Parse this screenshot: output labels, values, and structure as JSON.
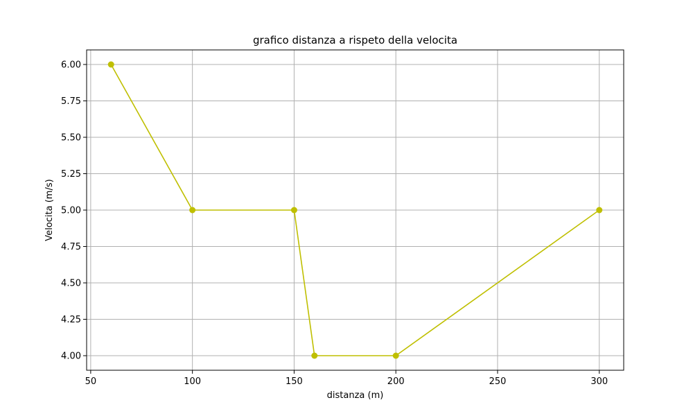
{
  "chart_data": {
    "type": "line",
    "title": "grafico distanza a rispeto della velocita",
    "xlabel": "distanza (m)",
    "ylabel": "Velocita (m/s)",
    "x": [
      60,
      100,
      150,
      160,
      200,
      300
    ],
    "series": [
      {
        "values": [
          6.0,
          5.0,
          5.0,
          4.0,
          4.0,
          5.0
        ],
        "color": "#bfbf00",
        "marker": "circle"
      }
    ],
    "xlim": [
      47.999,
      312.0
    ],
    "ylim": [
      3.9,
      6.1
    ],
    "xticks": [
      50,
      100,
      150,
      200,
      250,
      300
    ],
    "xtick_labels": [
      "50",
      "100",
      "150",
      "200",
      "250",
      "300"
    ],
    "yticks": [
      4.0,
      4.25,
      4.5,
      4.75,
      5.0,
      5.25,
      5.5,
      5.75,
      6.0
    ],
    "ytick_labels": [
      "4.00",
      "4.25",
      "4.50",
      "4.75",
      "5.00",
      "5.25",
      "5.50",
      "5.75",
      "6.00"
    ],
    "grid": true,
    "grid_color": "#b0b0b0",
    "legend": false
  }
}
